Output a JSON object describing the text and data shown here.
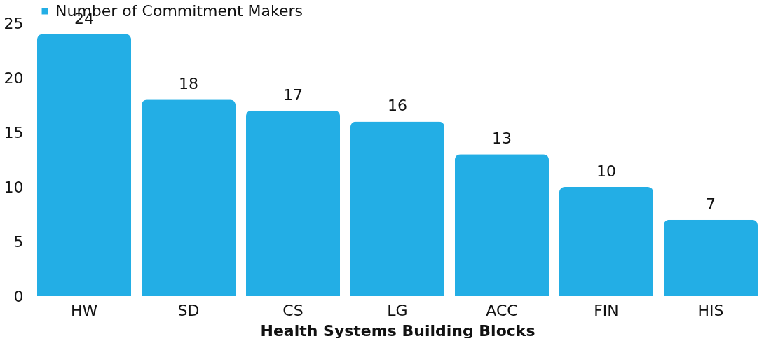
{
  "chart_data": {
    "type": "bar",
    "xlabel": "Health Systems Building Blocks",
    "categories": [
      "HW",
      "SD",
      "CS",
      "LG",
      "ACC",
      "FIN",
      "HIS"
    ],
    "series": [
      {
        "name": "Number of Commitment Makers",
        "color": "#23aee5",
        "values": [
          24,
          18,
          17,
          16,
          13,
          10,
          7
        ]
      }
    ],
    "ylim": [
      0,
      25
    ],
    "yticks": [
      0,
      5,
      10,
      15,
      20,
      25
    ],
    "grid": false,
    "legend": "top",
    "data_labels": true
  }
}
